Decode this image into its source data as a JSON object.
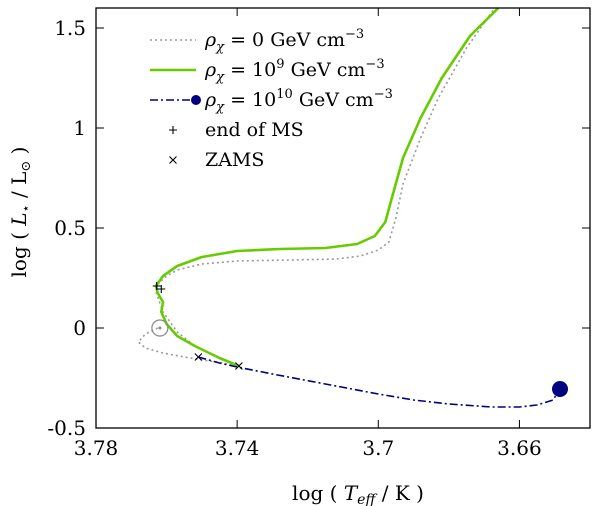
{
  "chart_data": {
    "type": "line",
    "title": "",
    "xlabel": {
      "pre": "log ( ",
      "var": "T",
      "sub": "eff",
      "post": " / K )"
    },
    "ylabel": {
      "pre": "log ( ",
      "var": "L",
      "sub": "⋆",
      "mid": " / L",
      "sub2": "⊙",
      "post": " )"
    },
    "xlim": [
      3.78,
      3.64
    ],
    "ylim": [
      -0.5,
      1.6
    ],
    "x_reversed": true,
    "xticks": [
      3.78,
      3.74,
      3.7,
      3.66
    ],
    "xtick_labels": [
      "3.78",
      "3.74",
      "3.7",
      "3.66"
    ],
    "yticks": [
      -0.5,
      0,
      0.5,
      1,
      1.5
    ],
    "ytick_labels": [
      "-0.5",
      "0",
      "0.5",
      "1",
      "1.5"
    ],
    "grid": false,
    "legend_position": "top-left",
    "series": [
      {
        "name": "ρχ = 0 GeV cm⁻³",
        "legend": {
          "sym": "ρ",
          "sub": "χ",
          "text": " = 0 GeV cm",
          "sup": "−3"
        },
        "color": "#999999",
        "style": "dotted",
        "points": [
          [
            3.7625,
            0.0
          ],
          [
            3.766,
            -0.03
          ],
          [
            3.768,
            -0.07
          ],
          [
            3.766,
            -0.1
          ],
          [
            3.761,
            -0.125
          ],
          [
            3.755,
            -0.145
          ],
          [
            3.748,
            -0.165
          ],
          [
            3.744,
            -0.175
          ],
          [
            3.74,
            -0.19
          ],
          [
            3.745,
            -0.15
          ],
          [
            3.752,
            -0.09
          ],
          [
            3.757,
            -0.02
          ],
          [
            3.761,
            0.08
          ],
          [
            3.763,
            0.18
          ],
          [
            3.7625,
            0.22
          ],
          [
            3.76,
            0.26
          ],
          [
            3.757,
            0.29
          ],
          [
            3.75,
            0.32
          ],
          [
            3.74,
            0.335
          ],
          [
            3.725,
            0.34
          ],
          [
            3.712,
            0.345
          ],
          [
            3.705,
            0.36
          ],
          [
            3.7,
            0.39
          ],
          [
            3.697,
            0.43
          ],
          [
            3.695,
            0.55
          ],
          [
            3.693,
            0.72
          ],
          [
            3.688,
            0.95
          ],
          [
            3.683,
            1.15
          ],
          [
            3.675,
            1.4
          ],
          [
            3.667,
            1.6
          ]
        ]
      },
      {
        "name": "ρχ = 10⁹ GeV cm⁻³",
        "legend": {
          "sym": "ρ",
          "sub": "χ",
          "text": " = 10",
          "sup1": "9",
          "text2": " GeV cm",
          "sup": "−3"
        },
        "color": "#66cc00",
        "style": "solid",
        "points": [
          [
            3.7395,
            -0.19
          ],
          [
            3.745,
            -0.15
          ],
          [
            3.752,
            -0.09
          ],
          [
            3.757,
            -0.04
          ],
          [
            3.76,
            0.02
          ],
          [
            3.7615,
            0.08
          ],
          [
            3.761,
            0.13
          ],
          [
            3.7625,
            0.175
          ],
          [
            3.763,
            0.21
          ],
          [
            3.761,
            0.26
          ],
          [
            3.757,
            0.31
          ],
          [
            3.75,
            0.355
          ],
          [
            3.74,
            0.385
          ],
          [
            3.728,
            0.395
          ],
          [
            3.715,
            0.4
          ],
          [
            3.706,
            0.42
          ],
          [
            3.701,
            0.46
          ],
          [
            3.698,
            0.53
          ],
          [
            3.696,
            0.66
          ],
          [
            3.693,
            0.85
          ],
          [
            3.688,
            1.05
          ],
          [
            3.682,
            1.25
          ],
          [
            3.674,
            1.46
          ],
          [
            3.666,
            1.6
          ]
        ]
      },
      {
        "name": "ρχ = 10¹⁰ GeV cm⁻³",
        "legend": {
          "sym": "ρ",
          "sub": "χ",
          "text": " = 10",
          "sup1": "10",
          "text2": " GeV cm",
          "sup": "−3"
        },
        "color": "#000080",
        "style": "dashdot",
        "points": [
          [
            3.751,
            -0.145
          ],
          [
            3.745,
            -0.175
          ],
          [
            3.74,
            -0.195
          ],
          [
            3.73,
            -0.23
          ],
          [
            3.715,
            -0.28
          ],
          [
            3.7,
            -0.33
          ],
          [
            3.69,
            -0.36
          ],
          [
            3.68,
            -0.38
          ],
          [
            3.668,
            -0.395
          ],
          [
            3.66,
            -0.395
          ],
          [
            3.655,
            -0.385
          ],
          [
            3.6505,
            -0.36
          ],
          [
            3.6485,
            -0.305
          ]
        ],
        "endpoint": [
          3.6485,
          -0.305
        ]
      }
    ],
    "markers": [
      {
        "name": "end of MS",
        "symbol": "+",
        "points": [
          [
            3.7628,
            0.21
          ],
          [
            3.7615,
            0.195
          ]
        ]
      },
      {
        "name": "ZAMS",
        "symbol": "×",
        "points": [
          [
            3.751,
            -0.145
          ],
          [
            3.7395,
            -0.19
          ]
        ]
      }
    ],
    "sun": [
      3.7619,
      0.0
    ]
  }
}
